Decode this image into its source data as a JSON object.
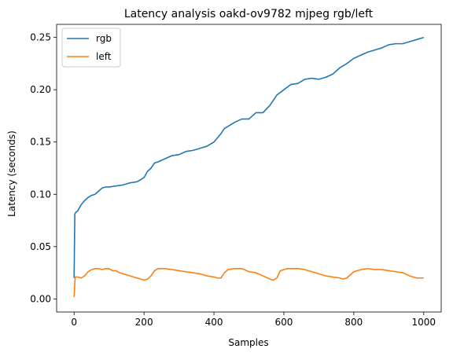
{
  "chart_data": {
    "type": "line",
    "title": "Latency analysis oakd-ov9782 mjpeg rgb/left",
    "xlabel": "Samples",
    "ylabel": "Latency (seconds)",
    "xlim": [
      -50,
      1050
    ],
    "ylim": [
      -0.0125,
      0.2625
    ],
    "x_ticks": [
      0,
      200,
      400,
      600,
      800,
      1000
    ],
    "y_ticks": [
      0.0,
      0.05,
      0.1,
      0.15,
      0.2,
      0.25
    ],
    "x_tick_labels": [
      "0",
      "200",
      "400",
      "600",
      "800",
      "1000"
    ],
    "y_tick_labels": [
      "0.00",
      "0.05",
      "0.10",
      "0.15",
      "0.20",
      "0.25"
    ],
    "grid": false,
    "legend_position": "top-left",
    "series": [
      {
        "name": "rgb",
        "color": "#1f77b4",
        "x": [
          0,
          2,
          5,
          10,
          20,
          30,
          40,
          50,
          60,
          70,
          80,
          90,
          100,
          120,
          140,
          160,
          180,
          200,
          210,
          220,
          230,
          240,
          260,
          280,
          300,
          320,
          340,
          360,
          380,
          400,
          420,
          430,
          440,
          460,
          480,
          500,
          520,
          540,
          560,
          580,
          600,
          620,
          640,
          660,
          680,
          700,
          720,
          740,
          760,
          780,
          800,
          820,
          840,
          860,
          880,
          900,
          920,
          940,
          960,
          980,
          1000
        ],
        "y": [
          0.02,
          0.081,
          0.083,
          0.084,
          0.09,
          0.094,
          0.097,
          0.099,
          0.1,
          0.103,
          0.106,
          0.107,
          0.107,
          0.108,
          0.109,
          0.111,
          0.112,
          0.116,
          0.122,
          0.125,
          0.13,
          0.131,
          0.134,
          0.137,
          0.138,
          0.141,
          0.142,
          0.144,
          0.146,
          0.15,
          0.158,
          0.163,
          0.165,
          0.169,
          0.172,
          0.172,
          0.178,
          0.178,
          0.185,
          0.195,
          0.2,
          0.205,
          0.206,
          0.21,
          0.211,
          0.21,
          0.212,
          0.215,
          0.221,
          0.225,
          0.23,
          0.233,
          0.236,
          0.238,
          0.24,
          0.243,
          0.244,
          0.244,
          0.246,
          0.248,
          0.25
        ]
      },
      {
        "name": "left",
        "color": "#ff7f0e",
        "x": [
          0,
          3,
          10,
          20,
          30,
          40,
          50,
          60,
          70,
          80,
          90,
          100,
          110,
          120,
          130,
          140,
          150,
          160,
          170,
          180,
          190,
          200,
          210,
          220,
          230,
          240,
          250,
          260,
          280,
          300,
          320,
          340,
          360,
          380,
          400,
          410,
          420,
          430,
          440,
          460,
          480,
          500,
          520,
          540,
          560,
          570,
          580,
          590,
          600,
          610,
          620,
          640,
          660,
          680,
          700,
          720,
          740,
          760,
          770,
          780,
          800,
          820,
          840,
          860,
          880,
          900,
          920,
          940,
          960,
          980,
          1000
        ],
        "y": [
          0.002,
          0.021,
          0.021,
          0.02,
          0.022,
          0.026,
          0.028,
          0.029,
          0.029,
          0.028,
          0.029,
          0.029,
          0.027,
          0.027,
          0.025,
          0.024,
          0.023,
          0.022,
          0.021,
          0.02,
          0.019,
          0.018,
          0.019,
          0.022,
          0.027,
          0.029,
          0.029,
          0.029,
          0.028,
          0.027,
          0.026,
          0.025,
          0.024,
          0.022,
          0.021,
          0.02,
          0.02,
          0.025,
          0.028,
          0.029,
          0.029,
          0.026,
          0.025,
          0.022,
          0.019,
          0.018,
          0.02,
          0.027,
          0.028,
          0.029,
          0.029,
          0.029,
          0.028,
          0.026,
          0.024,
          0.022,
          0.021,
          0.02,
          0.019,
          0.02,
          0.026,
          0.028,
          0.029,
          0.028,
          0.028,
          0.027,
          0.026,
          0.025,
          0.022,
          0.02,
          0.02
        ]
      }
    ]
  }
}
